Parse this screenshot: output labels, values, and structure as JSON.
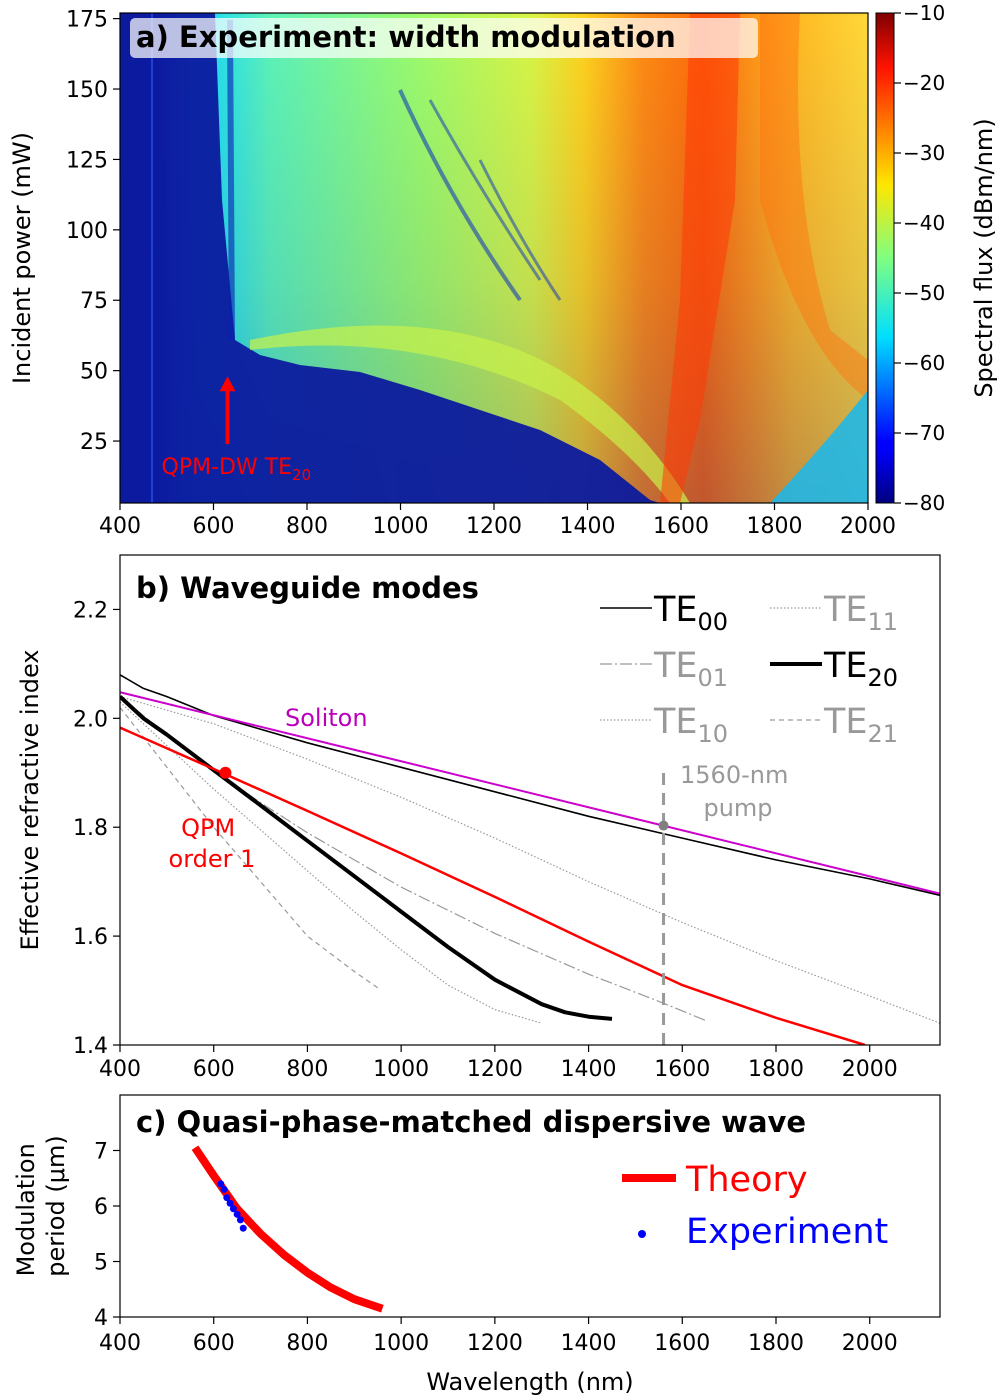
{
  "chart_data": [
    {
      "type": "heatmap",
      "title": "a) Experiment: width modulation",
      "xlabel": "",
      "ylabel": "Incident power (mW)",
      "xlim": [
        400,
        2000
      ],
      "ylim": [
        3,
        177
      ],
      "xticks": [
        400,
        600,
        800,
        1000,
        1200,
        1400,
        1600,
        1800,
        2000
      ],
      "yticks": [
        25,
        50,
        75,
        100,
        125,
        150,
        175
      ],
      "colorbar": {
        "label": "Spectral flux (dBm/nm)",
        "range": [
          -80,
          -10
        ],
        "ticks": [
          -80,
          -70,
          -60,
          -50,
          -40,
          -30,
          -20,
          -10
        ],
        "colormap": "jet"
      },
      "annotation": {
        "text": "QPM-DW TE",
        "subscript": "20",
        "x": 630,
        "y_arrow_tip": 48,
        "y_arrow_base": 24,
        "color": "#ff0000"
      }
    },
    {
      "type": "line",
      "title": "b) Waveguide modes",
      "xlabel": "",
      "ylabel": "Effective refractive index",
      "xlim": [
        400,
        2150
      ],
      "ylim": [
        1.4,
        2.3
      ],
      "xticks": [
        400,
        600,
        800,
        1000,
        1200,
        1400,
        1600,
        1800,
        2000
      ],
      "yticks": [
        1.4,
        1.6,
        1.8,
        2.0,
        2.2
      ],
      "legend_placement": "top-right",
      "series": [
        {
          "name": "TE",
          "sub": "00",
          "color": "#000000",
          "style": "solid",
          "width": 1.6,
          "x": [
            400,
            450,
            500,
            600,
            800,
            1000,
            1200,
            1400,
            1600,
            1800,
            2000,
            2150
          ],
          "y": [
            2.08,
            2.055,
            2.04,
            2.005,
            1.955,
            1.91,
            1.865,
            1.82,
            1.78,
            1.74,
            1.705,
            1.675
          ]
        },
        {
          "name": "TE",
          "sub": "01",
          "color": "#999999",
          "style": "dashdot",
          "width": 1.2,
          "x": [
            400,
            500,
            600,
            700,
            800,
            900,
            1000,
            1200,
            1400,
            1550,
            1650
          ],
          "y": [
            2.04,
            1.97,
            1.905,
            1.845,
            1.79,
            1.74,
            1.69,
            1.605,
            1.53,
            1.48,
            1.445
          ]
        },
        {
          "name": "TE",
          "sub": "10",
          "color": "#999999",
          "style": "dotted",
          "width": 1.2,
          "x": [
            400,
            600,
            800,
            1000,
            1200,
            1400,
            1600,
            1800,
            2000,
            2150
          ],
          "y": [
            2.04,
            1.99,
            1.925,
            1.855,
            1.78,
            1.7,
            1.625,
            1.555,
            1.49,
            1.44
          ]
        },
        {
          "name": "TE",
          "sub": "11",
          "color": "#999999",
          "style": "dotted",
          "width": 1.2,
          "x": [
            400,
            500,
            600,
            700,
            800,
            900,
            1000,
            1100,
            1200,
            1300
          ],
          "y": [
            2.03,
            1.95,
            1.87,
            1.795,
            1.72,
            1.645,
            1.575,
            1.51,
            1.465,
            1.44
          ]
        },
        {
          "name": "TE",
          "sub": "20",
          "color": "#000000",
          "style": "solid",
          "width": 4,
          "x": [
            400,
            450,
            500,
            600,
            700,
            800,
            900,
            1000,
            1100,
            1200,
            1300,
            1350,
            1400,
            1450
          ],
          "y": [
            2.04,
            2.0,
            1.97,
            1.905,
            1.84,
            1.775,
            1.71,
            1.645,
            1.58,
            1.52,
            1.475,
            1.46,
            1.452,
            1.448
          ]
        },
        {
          "name": "TE",
          "sub": "21",
          "color": "#999999",
          "style": "dashed",
          "width": 1.2,
          "x": [
            400,
            500,
            600,
            700,
            800,
            900,
            950
          ],
          "y": [
            2.02,
            1.91,
            1.8,
            1.7,
            1.6,
            1.535,
            1.505
          ]
        },
        {
          "name": "Soliton",
          "color": "#cc00cc",
          "style": "solid",
          "width": 2,
          "x": [
            400,
            2150
          ],
          "y": [
            2.048,
            1.678
          ]
        },
        {
          "name": "QPM\norder 1",
          "color": "#ff0000",
          "style": "solid",
          "width": 2.5,
          "x": [
            400,
            600,
            800,
            1000,
            1200,
            1400,
            1600,
            1800,
            1990
          ],
          "y": [
            1.983,
            1.907,
            1.83,
            1.752,
            1.672,
            1.59,
            1.51,
            1.45,
            1.4
          ]
        }
      ],
      "markers": [
        {
          "x": 625,
          "y": 1.9,
          "color": "#ff0000"
        },
        {
          "x": 1560,
          "y": 1.803,
          "color": "#808080"
        }
      ],
      "pump": {
        "text": "1560-nm\npump",
        "x": 1560,
        "y_from": 1.4,
        "y_to": 1.905,
        "color": "#999999"
      }
    },
    {
      "type": "scatter",
      "title": "c) Quasi-phase-matched dispersive wave",
      "xlabel": "Wavelength (nm)",
      "ylabel": "Modulation\nperiod (μm)",
      "xlim": [
        400,
        2150
      ],
      "ylim": [
        4,
        8
      ],
      "xticks": [
        400,
        600,
        800,
        1000,
        1200,
        1400,
        1600,
        1800,
        2000
      ],
      "yticks": [
        4,
        5,
        6,
        7
      ],
      "legend_placement": "right",
      "theory": {
        "name": "Theory",
        "color": "#ff0000",
        "x": [
          560,
          600,
          650,
          700,
          750,
          800,
          850,
          900,
          960
        ],
        "y": [
          7.05,
          6.55,
          5.95,
          5.5,
          5.12,
          4.8,
          4.53,
          4.32,
          4.15
        ]
      },
      "experiment": {
        "name": "Experiment",
        "color": "#0000ff",
        "x": [
          615,
          622,
          628,
          635,
          642,
          650,
          657,
          663
        ],
        "y": [
          6.4,
          6.3,
          6.15,
          6.05,
          5.95,
          5.85,
          5.75,
          5.6
        ]
      }
    }
  ]
}
